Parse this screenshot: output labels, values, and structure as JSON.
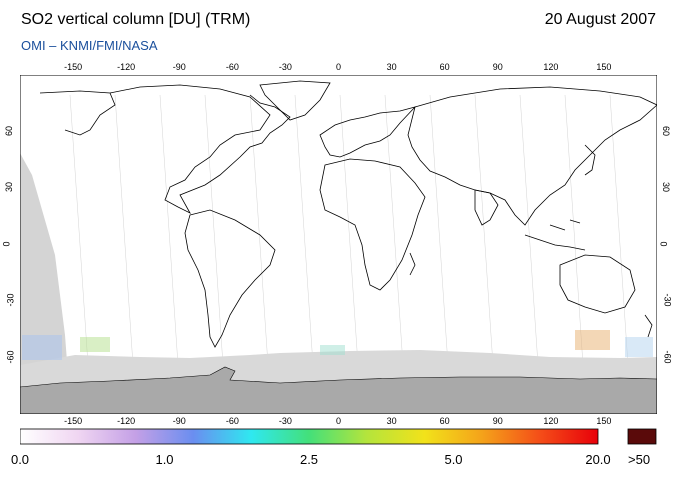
{
  "header": {
    "title": "SO2 vertical column [DU] (TRM)",
    "date": "20 August 2007",
    "credit": "OMI  –  KNMI/FMI/NASA"
  },
  "map": {
    "longitude_ticks": [
      "-150",
      "-120",
      "-90",
      "-60",
      "-30",
      "0",
      "30",
      "60",
      "90",
      "120",
      "150"
    ],
    "longitude_tick_values": [
      -150,
      -120,
      -90,
      -60,
      -30,
      0,
      30,
      60,
      90,
      120,
      150
    ],
    "latitude_ticks": [
      "60",
      "30",
      "0",
      "-30",
      "-60"
    ],
    "latitude_tick_values": [
      60,
      30,
      0,
      -30,
      -60
    ],
    "lon_range": [
      -180,
      180
    ],
    "lat_range": [
      -90,
      90
    ],
    "colors": {
      "background": "#ffffff",
      "no_data": "#d4d4d4",
      "antarctica": "#a9a9a9",
      "coastline": "#000000"
    }
  },
  "colorbar": {
    "labels": [
      "0.0",
      "1.0",
      "2.5",
      "5.0",
      "20.0"
    ],
    "label_positions_fraction": [
      0.0,
      0.25,
      0.5,
      0.75,
      1.0
    ],
    "over_label": ">50",
    "over_color": "#5a0a0a",
    "stops": [
      "#ffffff",
      "#f0d6f2",
      "#c4a0e6",
      "#6a8ef0",
      "#2fe8f0",
      "#43e07a",
      "#b4e43c",
      "#f2e21a",
      "#f4a21a",
      "#f44d18",
      "#e8000a"
    ]
  }
}
